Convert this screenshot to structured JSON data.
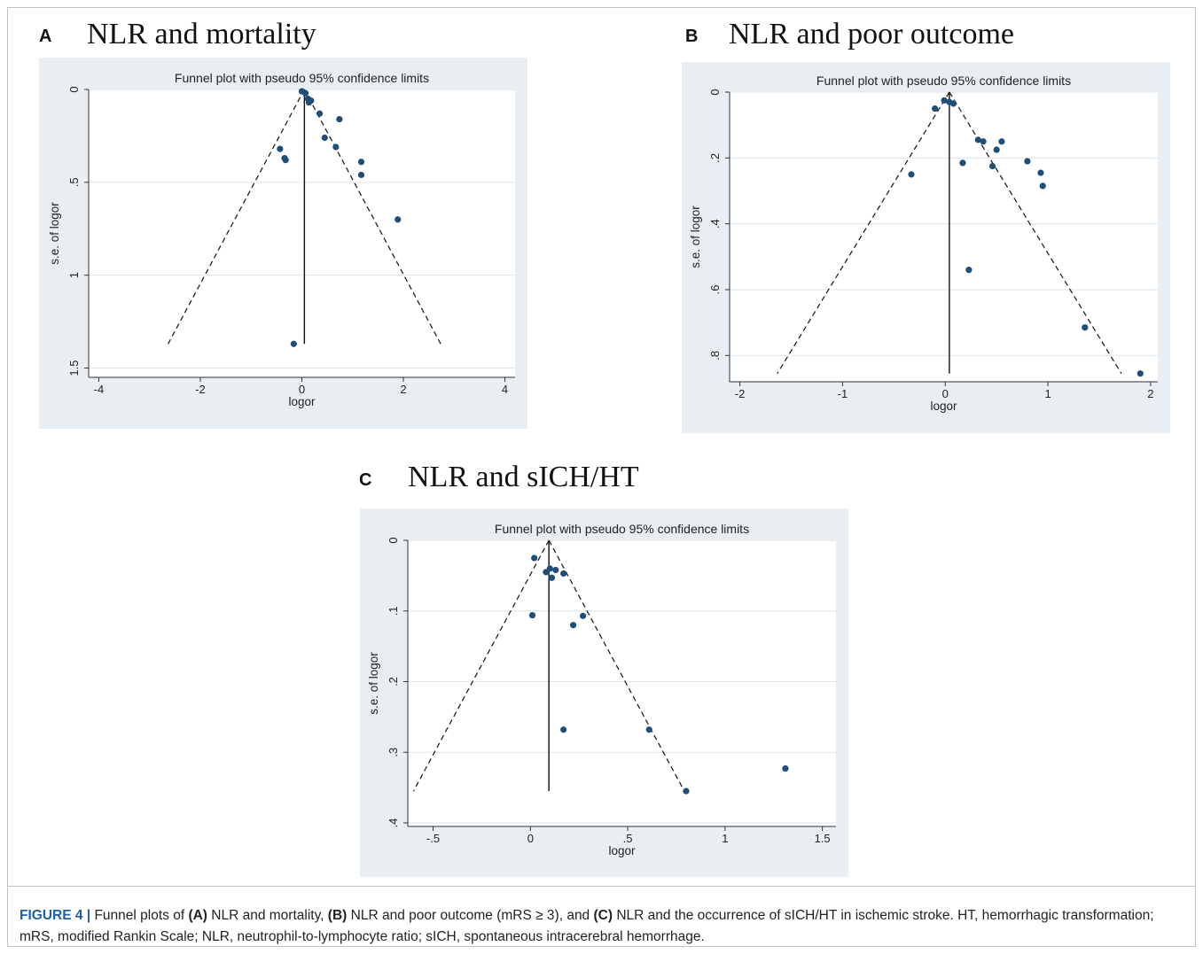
{
  "charts": {
    "a": {
      "letter": "A",
      "heading": "NLR and mortality",
      "plot_title": "Funnel plot with pseudo 95% confidence limits",
      "xlabel": "logor",
      "ylabel": "s.e. of logor"
    },
    "b": {
      "letter": "B",
      "heading": "NLR and poor outcome",
      "plot_title": "Funnel plot with pseudo 95% confidence limits",
      "xlabel": "logor",
      "ylabel": "s.e. of logor"
    },
    "c": {
      "letter": "C",
      "heading": "NLR and sICH/HT",
      "plot_title": "Funnel plot with pseudo 95% confidence limits",
      "xlabel": "logor",
      "ylabel": "s.e. of logor"
    }
  },
  "colors": {
    "point": "#1f4e79",
    "panel_bg": "#e9eef3",
    "plot_bg": "#ffffff",
    "grid": "#dfe5ea",
    "caption_label": "#1f5fa8"
  },
  "caption": {
    "fig_label": "FIGURE 4 |",
    "t1": " Funnel plots of ",
    "a": "(A)",
    "t2": " NLR and mortality, ",
    "b": "(B)",
    "t3": " NLR and poor outcome (mRS ≥ 3), and ",
    "c": "(C)",
    "t4": " NLR and the occurrence of sICH/HT in ischemic stroke. HT, hemorrhagic transformation; mRS, modified Rankin Scale; NLR, neutrophil-to-lymphocyte ratio; sICH, spontaneous intracerebral hemorrhage."
  },
  "chart_data": [
    {
      "type": "scatter",
      "title": "Funnel plot with pseudo 95% confidence limits",
      "xlabel": "logor",
      "ylabel": "s.e. of logor",
      "xlim": [
        -4.2,
        4.2
      ],
      "ylim": [
        1.55,
        0
      ],
      "y_inverted": true,
      "xticks": [
        -4,
        -2,
        0,
        2,
        4
      ],
      "xtick_labels": [
        "-4",
        "-2",
        "0",
        "2",
        "4"
      ],
      "yticks": [
        0,
        0.5,
        1,
        1.5
      ],
      "ytick_labels": [
        "0",
        ".5",
        "1",
        "1.5"
      ],
      "grid": true,
      "pooled_logor": 0.05,
      "se_max": 1.37,
      "points": [
        {
          "x": 0.0,
          "y": 0.01
        },
        {
          "x": 0.07,
          "y": 0.02
        },
        {
          "x": 0.12,
          "y": 0.05
        },
        {
          "x": 0.18,
          "y": 0.06
        },
        {
          "x": 0.14,
          "y": 0.07
        },
        {
          "x": 0.35,
          "y": 0.13
        },
        {
          "x": 0.74,
          "y": 0.16
        },
        {
          "x": 0.45,
          "y": 0.26
        },
        {
          "x": 0.67,
          "y": 0.31
        },
        {
          "x": -0.43,
          "y": 0.32
        },
        {
          "x": -0.34,
          "y": 0.37
        },
        {
          "x": -0.32,
          "y": 0.38
        },
        {
          "x": 1.17,
          "y": 0.39
        },
        {
          "x": 1.17,
          "y": 0.46
        },
        {
          "x": 1.89,
          "y": 0.7
        },
        {
          "x": -0.16,
          "y": 1.37
        }
      ]
    },
    {
      "type": "scatter",
      "title": "Funnel plot with pseudo 95% confidence limits",
      "xlabel": "logor",
      "ylabel": "s.e. of logor",
      "xlim": [
        -2.1,
        2.07
      ],
      "ylim": [
        0.88,
        0
      ],
      "y_inverted": true,
      "xticks": [
        -2,
        -1,
        0,
        1,
        2
      ],
      "xtick_labels": [
        "-2",
        "-1",
        "0",
        "1",
        "2"
      ],
      "yticks": [
        0,
        0.2,
        0.4,
        0.6,
        0.8
      ],
      "ytick_labels": [
        "0",
        ".2",
        ".4",
        ".6",
        ".8"
      ],
      "grid": true,
      "pooled_logor": 0.04,
      "se_max": 0.855,
      "points": [
        {
          "x": -0.01,
          "y": 0.025
        },
        {
          "x": 0.04,
          "y": 0.03
        },
        {
          "x": 0.08,
          "y": 0.035
        },
        {
          "x": -0.1,
          "y": 0.05
        },
        {
          "x": 0.32,
          "y": 0.145
        },
        {
          "x": 0.37,
          "y": 0.15
        },
        {
          "x": 0.55,
          "y": 0.15
        },
        {
          "x": 0.5,
          "y": 0.175
        },
        {
          "x": 0.17,
          "y": 0.215
        },
        {
          "x": 0.46,
          "y": 0.225
        },
        {
          "x": 0.8,
          "y": 0.21
        },
        {
          "x": 0.93,
          "y": 0.245
        },
        {
          "x": -0.33,
          "y": 0.25
        },
        {
          "x": 0.95,
          "y": 0.285
        },
        {
          "x": 0.23,
          "y": 0.54
        },
        {
          "x": 1.36,
          "y": 0.715
        },
        {
          "x": 1.9,
          "y": 0.855
        }
      ]
    },
    {
      "type": "scatter",
      "title": "Funnel plot with pseudo 95% confidence limits",
      "xlabel": "logor",
      "ylabel": "s.e. of logor",
      "xlim": [
        -0.63,
        1.57
      ],
      "ylim": [
        0.405,
        0
      ],
      "y_inverted": true,
      "xticks": [
        -0.5,
        0,
        0.5,
        1,
        1.5
      ],
      "xtick_labels": [
        "-.5",
        "0",
        ".5",
        "1",
        "1.5"
      ],
      "yticks": [
        0,
        0.1,
        0.2,
        0.3,
        0.4
      ],
      "ytick_labels": [
        "0",
        ".1",
        ".2",
        ".3",
        ".4"
      ],
      "grid": true,
      "pooled_logor": 0.095,
      "se_max": 0.355,
      "points": [
        {
          "x": 0.02,
          "y": 0.025
        },
        {
          "x": 0.08,
          "y": 0.045
        },
        {
          "x": 0.1,
          "y": 0.04
        },
        {
          "x": 0.13,
          "y": 0.042
        },
        {
          "x": 0.17,
          "y": 0.047
        },
        {
          "x": 0.11,
          "y": 0.053
        },
        {
          "x": 0.27,
          "y": 0.107
        },
        {
          "x": 0.01,
          "y": 0.106
        },
        {
          "x": 0.22,
          "y": 0.12
        },
        {
          "x": 0.17,
          "y": 0.268
        },
        {
          "x": 0.61,
          "y": 0.268
        },
        {
          "x": 1.31,
          "y": 0.323
        },
        {
          "x": 0.8,
          "y": 0.355
        }
      ]
    }
  ]
}
